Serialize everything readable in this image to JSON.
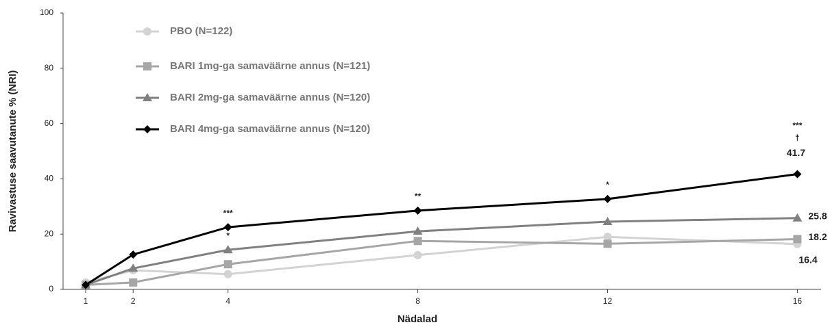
{
  "chart_data": {
    "type": "line",
    "x_label": "Nädalad",
    "y_label": "Ravivastuse saavutanute % (NRI)",
    "x": [
      1,
      2,
      4,
      8,
      12,
      16
    ],
    "xlim": [
      0.5,
      16.5
    ],
    "xticks": [
      1,
      2,
      4,
      8,
      12,
      16
    ],
    "ylim": [
      0,
      100
    ],
    "yticks": [
      0,
      20,
      40,
      60,
      80,
      100
    ],
    "grid": false,
    "legend": "upper left",
    "series": [
      {
        "name": "PBO (N=122)",
        "color": "#d3d3d3",
        "marker": "circle",
        "values": [
          2.5,
          6.9,
          5.5,
          12.4,
          19,
          16.4
        ],
        "annotations": []
      },
      {
        "name": "BARI 1mg-ga samaväärne annus (N=121)",
        "color": "#a6a6a6",
        "marker": "square",
        "values": [
          1.6,
          2.5,
          9.1,
          17.5,
          16.5,
          18.2
        ],
        "annotations": []
      },
      {
        "name": "BARI 2mg-ga samaväärne annus (N=120)",
        "color": "#808080",
        "marker": "triangle",
        "values": [
          1.6,
          7.6,
          14.3,
          21,
          24.5,
          25.8
        ],
        "annotations": [
          {
            "x": 4,
            "text": [
              "*"
            ]
          }
        ]
      },
      {
        "name": "BARI 4mg-ga samaväärne annus (N=120)",
        "color": "#000000",
        "marker": "diamond",
        "values": [
          1.6,
          12.6,
          22.5,
          28.5,
          32.7,
          41.7
        ],
        "annotations": [
          {
            "x": 4,
            "text": [
              "***"
            ]
          },
          {
            "x": 8,
            "text": [
              "**"
            ]
          },
          {
            "x": 12,
            "text": [
              "*"
            ]
          },
          {
            "x": 16,
            "text": [
              "***",
              "†"
            ]
          }
        ]
      }
    ]
  }
}
